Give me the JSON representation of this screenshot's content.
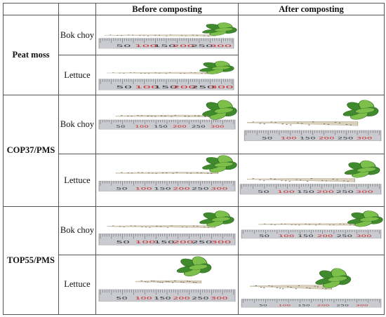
{
  "header": {
    "col1": "",
    "col2": "",
    "before": "Before composting",
    "after": "After composting"
  },
  "rows": [
    {
      "treatment": "Peat moss",
      "crops": [
        {
          "name": "Bok choy",
          "before_photo": "plant-seedling-on-ruler",
          "after_photo": ""
        },
        {
          "name": "Lettuce",
          "before_photo": "plant-seedling-on-ruler",
          "after_photo": ""
        }
      ]
    },
    {
      "treatment": "COP37/PMS",
      "crops": [
        {
          "name": "Bok choy",
          "before_photo": "plant-seedling-on-ruler",
          "after_photo": "plant-seedling-on-ruler"
        },
        {
          "name": "Lettuce",
          "before_photo": "plant-seedling-on-ruler",
          "after_photo": "plant-seedling-on-ruler"
        }
      ]
    },
    {
      "treatment": "TOP55/PMS",
      "crops": [
        {
          "name": "Bok choy",
          "before_photo": "plant-seedling-on-ruler",
          "after_photo": "plant-seedling-on-ruler"
        },
        {
          "name": "Lettuce",
          "before_photo": "plant-seedling-on-ruler",
          "after_photo": "plant-seedling-on-ruler"
        }
      ]
    }
  ],
  "ruler_ticks": [
    "50",
    "100",
    "150",
    "200",
    "250",
    "300"
  ],
  "colors": {
    "leaf": "#3f8a2c",
    "leaf_light": "#7cbf4a",
    "root": "#d8d0bc",
    "soil": "#6b5a45",
    "ruler": "#c9cbd0",
    "ruler_red": "#cc2a2a"
  }
}
